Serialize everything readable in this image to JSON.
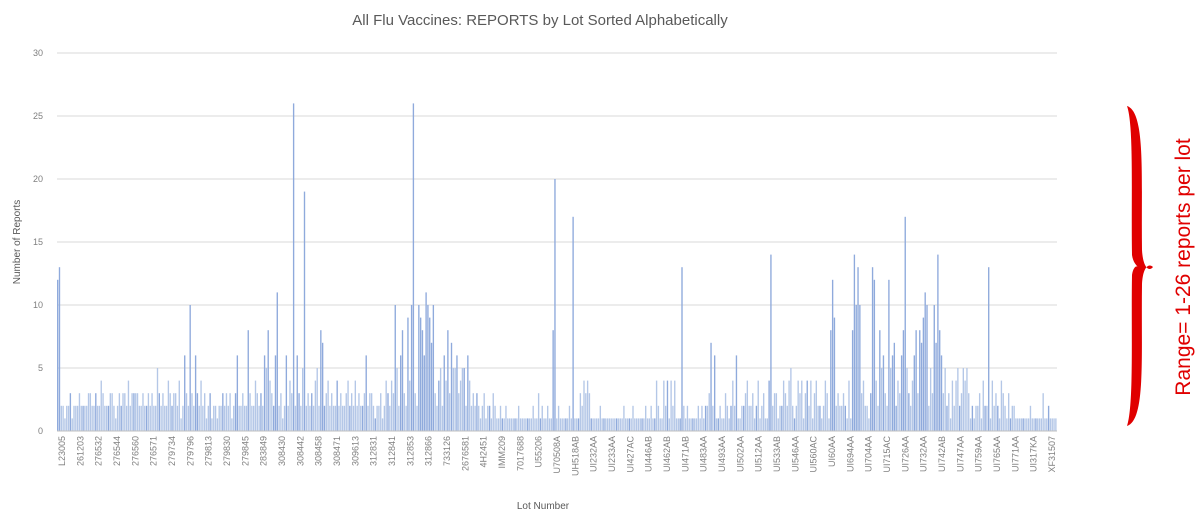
{
  "chart_data": {
    "type": "bar",
    "title": "All Flu Vaccines: REPORTS by Lot Sorted Alphabetically",
    "xlabel": "Lot Number",
    "ylabel": "Number of Reports",
    "ylim": [
      0,
      30
    ],
    "yticks": [
      0,
      5,
      10,
      15,
      20,
      25,
      30
    ],
    "grid": true,
    "bar_color": "#b4c7e7",
    "bar_dark_color": "#8faadc",
    "grid_color": "#d9d9d9",
    "x_tick_labels": [
      "L23005",
      "261203",
      "276532",
      "276544",
      "276560",
      "276571",
      "279734",
      "279796",
      "279813",
      "279830",
      "279845",
      "283849",
      "308430",
      "308442",
      "308458",
      "308471",
      "309613",
      "312831",
      "312841",
      "312853",
      "312866",
      "733126",
      "2676581",
      "4H2451",
      "IMM209",
      "7017688",
      "U55206",
      "U70508A",
      "UH518AB",
      "UI232AA",
      "UI233AA",
      "UI427AC",
      "UI446AB",
      "UI462AB",
      "UI471AB",
      "UI483AA",
      "UI493AA",
      "UI502AA",
      "UI512AA",
      "UI533AB",
      "UI546AA",
      "UI560AC",
      "UI60AA",
      "UI694AA",
      "UI704AA",
      "UI715AC",
      "UI726AA",
      "UI732AA",
      "UI742AB",
      "UI747AA",
      "UI759AA",
      "UI765AA",
      "UI771AA",
      "UI317KA",
      "XF31507"
    ],
    "values": [
      12,
      13,
      2,
      2,
      1,
      2,
      2,
      3,
      1,
      2,
      2,
      2,
      3,
      2,
      2,
      2,
      2,
      3,
      3,
      2,
      2,
      3,
      2,
      2,
      4,
      3,
      2,
      2,
      2,
      3,
      3,
      2,
      1,
      2,
      3,
      2,
      3,
      3,
      2,
      4,
      2,
      3,
      3,
      3,
      3,
      2,
      2,
      3,
      2,
      2,
      3,
      2,
      3,
      2,
      2,
      5,
      3,
      2,
      3,
      2,
      2,
      4,
      3,
      2,
      3,
      3,
      2,
      4,
      1,
      2,
      6,
      3,
      2,
      10,
      3,
      2,
      6,
      3,
      2,
      4,
      2,
      3,
      1,
      2,
      3,
      1,
      2,
      2,
      1,
      2,
      2,
      3,
      2,
      3,
      2,
      3,
      1,
      2,
      3,
      6,
      2,
      2,
      3,
      2,
      2,
      8,
      3,
      2,
      2,
      4,
      3,
      2,
      3,
      2,
      6,
      5,
      8,
      4,
      3,
      2,
      6,
      11,
      2,
      3,
      1,
      2,
      6,
      2,
      4,
      3,
      26,
      2,
      6,
      3,
      2,
      5,
      19,
      2,
      3,
      2,
      3,
      2,
      4,
      5,
      2,
      8,
      7,
      2,
      3,
      4,
      2,
      3,
      2,
      2,
      4,
      2,
      3,
      2,
      2,
      3,
      4,
      2,
      3,
      2,
      4,
      2,
      3,
      2,
      2,
      3,
      6,
      2,
      3,
      3,
      2,
      1,
      2,
      2,
      3,
      1,
      2,
      4,
      3,
      2,
      4,
      3,
      10,
      5,
      2,
      6,
      8,
      3,
      2,
      9,
      4,
      10,
      26,
      3,
      2,
      10,
      9,
      8,
      6,
      11,
      10,
      9,
      7,
      10,
      3,
      2,
      4,
      5,
      2,
      6,
      4,
      8,
      3,
      7,
      5,
      5,
      6,
      3,
      4,
      5,
      5,
      2,
      6,
      4,
      2,
      3,
      2,
      3,
      2,
      1,
      2,
      3,
      1,
      2,
      2,
      1,
      3,
      2,
      1,
      1,
      2,
      1,
      1,
      2,
      1,
      1,
      1,
      1,
      1,
      1,
      2,
      1,
      1,
      1,
      1,
      1,
      1,
      1,
      2,
      1,
      1,
      3,
      1,
      2,
      1,
      1,
      2,
      1,
      1,
      8,
      20,
      1,
      2,
      1,
      1,
      1,
      1,
      1,
      2,
      1,
      17,
      1,
      1,
      1,
      3,
      2,
      4,
      3,
      4,
      3,
      1,
      1,
      1,
      1,
      1,
      2,
      1,
      1,
      1,
      1,
      1,
      1,
      1,
      1,
      1,
      1,
      1,
      1,
      2,
      1,
      1,
      1,
      1,
      2,
      1,
      1,
      1,
      1,
      1,
      1,
      2,
      1,
      1,
      2,
      1,
      1,
      4,
      2,
      1,
      1,
      4,
      2,
      4,
      1,
      4,
      2,
      4,
      1,
      1,
      1,
      13,
      2,
      1,
      2,
      1,
      1,
      1,
      1,
      1,
      2,
      1,
      2,
      1,
      2,
      2,
      3,
      7,
      2,
      6,
      1,
      1,
      2,
      1,
      1,
      3,
      2,
      1,
      2,
      4,
      2,
      6,
      1,
      1,
      2,
      2,
      3,
      4,
      2,
      2,
      3,
      1,
      2,
      4,
      1,
      2,
      3,
      1,
      1,
      4,
      14,
      2,
      3,
      3,
      1,
      2,
      2,
      4,
      3,
      2,
      4,
      5,
      2,
      1,
      2,
      4,
      3,
      4,
      1,
      3,
      4,
      2,
      4,
      1,
      3,
      4,
      2,
      2,
      1,
      2,
      4,
      3,
      1,
      8,
      12,
      9,
      2,
      3,
      2,
      2,
      3,
      2,
      1,
      4,
      1,
      8,
      14,
      10,
      13,
      10,
      3,
      4,
      2,
      2,
      1,
      3,
      13,
      12,
      4,
      2,
      8,
      5,
      6,
      3,
      2,
      12,
      5,
      6,
      7,
      2,
      4,
      3,
      6,
      8,
      17,
      5,
      3,
      2,
      4,
      6,
      8,
      3,
      8,
      7,
      9,
      11,
      10,
      2,
      5,
      3,
      10,
      7,
      14,
      8,
      6,
      3,
      5,
      2,
      3,
      1,
      4,
      2,
      4,
      5,
      2,
      3,
      5,
      4,
      5,
      3,
      1,
      2,
      1,
      2,
      2,
      3,
      1,
      4,
      2,
      2,
      13,
      1,
      4,
      2,
      3,
      2,
      1,
      4,
      3,
      2,
      1,
      3,
      1,
      2,
      2,
      1,
      1,
      1,
      1,
      1,
      1,
      1,
      1,
      2,
      1,
      1,
      1,
      1,
      1,
      1,
      3,
      1,
      1,
      2,
      1,
      1,
      1,
      1
    ]
  },
  "annotation": {
    "text": "Range= 1-26 reports per lot",
    "color": "#e00000"
  }
}
